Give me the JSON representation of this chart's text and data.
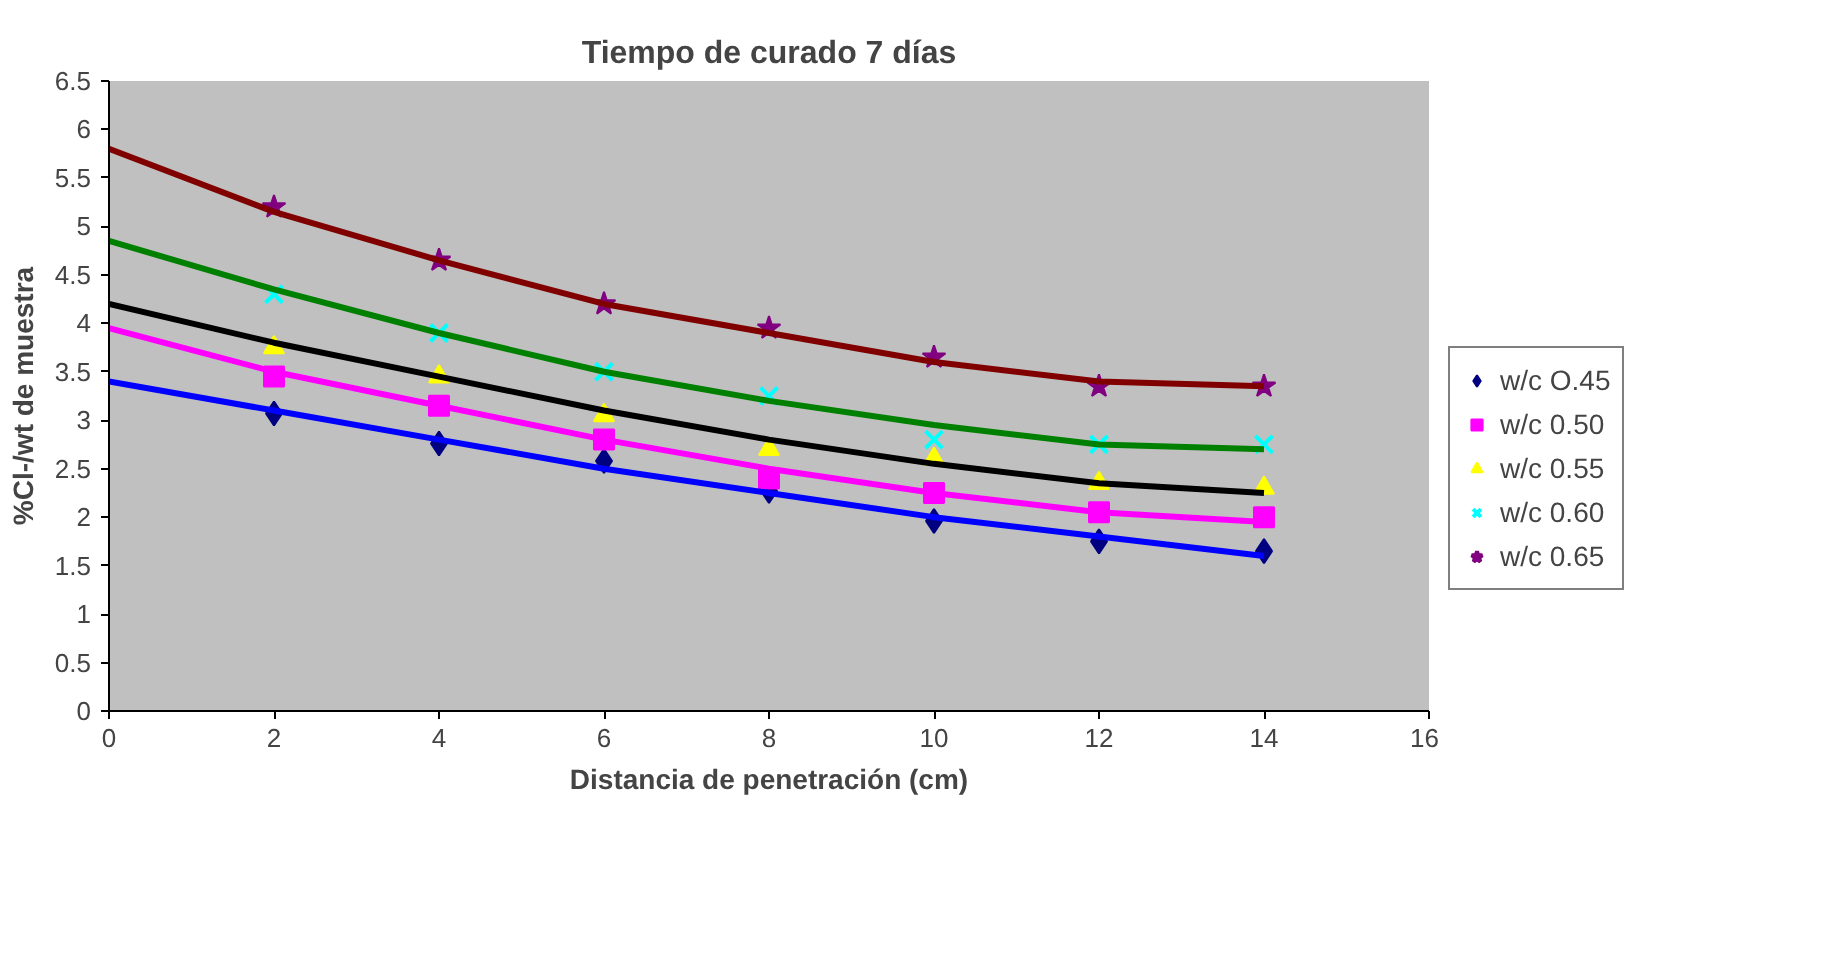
{
  "chart_data": {
    "type": "scatter",
    "title": "Tiempo de curado 7 días",
    "xlabel": "Distancia de penetración (cm)",
    "ylabel": "%Cl-/wt de muestra",
    "xlim": [
      0,
      16
    ],
    "xticks": [
      0,
      2,
      4,
      6,
      8,
      10,
      12,
      14,
      16
    ],
    "ylim": [
      0,
      6.5
    ],
    "yticks": [
      0,
      0.5,
      1,
      1.5,
      2,
      2.5,
      3,
      3.5,
      4,
      4.5,
      5,
      5.5,
      6,
      6.5
    ],
    "grid": false,
    "legend": "right",
    "series": [
      {
        "name": "w/c O.45",
        "marker": "diamond",
        "color": "#000080",
        "x": [
          2,
          4,
          6,
          8,
          10,
          12,
          14
        ],
        "values": [
          3.07,
          2.76,
          2.58,
          2.27,
          1.96,
          1.75,
          1.65
        ]
      },
      {
        "name": "w/c 0.50",
        "marker": "square",
        "color": "#ff00ff",
        "x": [
          2,
          4,
          6,
          8,
          10,
          12,
          14
        ],
        "values": [
          3.45,
          3.15,
          2.8,
          2.4,
          2.25,
          2.05,
          2.0
        ]
      },
      {
        "name": "w/c 0.55",
        "marker": "triangle",
        "color": "#ffff00",
        "x": [
          2,
          4,
          6,
          8,
          10,
          12,
          14
        ],
        "values": [
          3.75,
          3.45,
          3.05,
          2.7,
          2.6,
          2.35,
          2.3
        ]
      },
      {
        "name": "w/c 0.60",
        "marker": "cross",
        "color": "#00ffff",
        "x": [
          2,
          4,
          6,
          8,
          10,
          12,
          14
        ],
        "values": [
          4.3,
          3.9,
          3.5,
          3.25,
          2.8,
          2.75,
          2.75
        ]
      },
      {
        "name": "w/c 0.65",
        "marker": "star",
        "color": "#800080",
        "x": [
          2,
          4,
          6,
          8,
          10,
          12,
          14
        ],
        "values": [
          5.2,
          4.65,
          4.2,
          3.95,
          3.65,
          3.35,
          3.35
        ]
      },
      {
        "type": "line",
        "color": "#0000ff",
        "x": [
          0,
          2,
          4,
          6,
          8,
          10,
          12,
          14
        ],
        "values": [
          3.4,
          3.1,
          2.8,
          2.5,
          2.25,
          2.0,
          1.8,
          1.6
        ]
      },
      {
        "type": "line",
        "color": "#ff00ff",
        "x": [
          0,
          2,
          4,
          6,
          8,
          10,
          12,
          14
        ],
        "values": [
          3.95,
          3.5,
          3.15,
          2.8,
          2.5,
          2.25,
          2.05,
          1.95
        ]
      },
      {
        "type": "line",
        "color": "#000000",
        "x": [
          0,
          2,
          4,
          6,
          8,
          10,
          12,
          14
        ],
        "values": [
          4.2,
          3.8,
          3.45,
          3.1,
          2.8,
          2.55,
          2.35,
          2.25
        ]
      },
      {
        "type": "line",
        "color": "#008000",
        "x": [
          0,
          2,
          4,
          6,
          8,
          10,
          12,
          14
        ],
        "values": [
          4.85,
          4.35,
          3.9,
          3.5,
          3.2,
          2.95,
          2.75,
          2.7
        ]
      },
      {
        "type": "line",
        "color": "#800000",
        "x": [
          0,
          2,
          4,
          6,
          8,
          10,
          12,
          14
        ],
        "values": [
          5.8,
          5.15,
          4.65,
          4.2,
          3.9,
          3.6,
          3.4,
          3.35
        ]
      }
    ]
  }
}
